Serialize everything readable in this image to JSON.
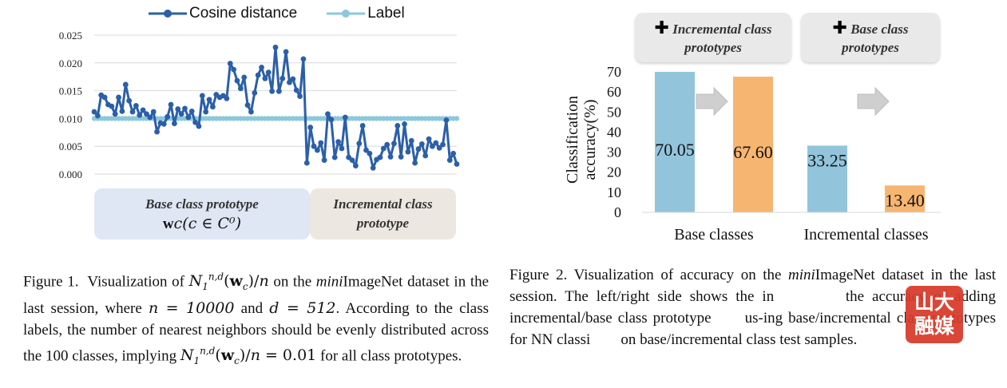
{
  "chart_data": [
    {
      "type": "line",
      "legend": [
        "Cosine distance",
        "Label"
      ],
      "legend_position": "top",
      "ylim": [
        0,
        0.025
      ],
      "yticks": [
        "0.025",
        "0.020",
        "0.015",
        "0.010",
        "0.005",
        "0.000"
      ],
      "grid": true,
      "series": [
        {
          "name": "Cosine distance",
          "color": "#2b5fa8",
          "values": [
            0.0112,
            0.0105,
            0.0142,
            0.0138,
            0.0125,
            0.0122,
            0.0108,
            0.0138,
            0.0113,
            0.0161,
            0.0132,
            0.0112,
            0.0123,
            0.0106,
            0.0115,
            0.0108,
            0.0102,
            0.0112,
            0.0076,
            0.0092,
            0.009,
            0.0103,
            0.0125,
            0.0091,
            0.0117,
            0.0108,
            0.0118,
            0.0102,
            0.0113,
            0.0093,
            0.0086,
            0.0141,
            0.0112,
            0.0134,
            0.0121,
            0.0143,
            0.0138,
            0.0141,
            0.0136,
            0.0199,
            0.0188,
            0.0168,
            0.0154,
            0.0174,
            0.0124,
            0.0112,
            0.0146,
            0.0178,
            0.0192,
            0.0172,
            0.0183,
            0.0149,
            0.0228,
            0.0149,
            0.0172,
            0.022,
            0.0165,
            0.0171,
            0.0151,
            0.014,
            0.0207,
            0.002,
            0.0084,
            0.005,
            0.0043,
            0.0056,
            0.0025,
            0.0108,
            0.0098,
            0.003,
            0.0058,
            0.0046,
            0.0102,
            0.003,
            0.0025,
            0.0015,
            0.0055,
            0.0087,
            0.0043,
            0.0037,
            0.0011,
            0.0026,
            0.003,
            0.0046,
            0.0053,
            0.0031,
            0.0055,
            0.0087,
            0.0031,
            0.009,
            0.004,
            0.006,
            0.002,
            0.0045,
            0.0054,
            0.0033,
            0.0063,
            0.005,
            0.0056,
            0.0047,
            0.0053,
            0.0097,
            0.0025,
            0.0037,
            0.0018
          ]
        },
        {
          "name": "Label",
          "color": "#8cc8dc",
          "values": [
            0.01,
            0.01
          ]
        }
      ],
      "regions": [
        {
          "line1": "Base class prototype",
          "line2": "w",
          "line2_rest": "c(c ∈ C⁰)",
          "color": "#dfe6f4"
        },
        {
          "line1": "Incremental class",
          "line2": "prototype",
          "color": "#ece8e1"
        }
      ]
    },
    {
      "type": "bar",
      "ylabel_line1": "Classification",
      "ylabel_line2": "accuracy(%)",
      "ylim": [
        0,
        70
      ],
      "yticks": [
        "70",
        "60",
        "50",
        "40",
        "30",
        "20",
        "10",
        "0"
      ],
      "categories": [
        "Base classes",
        "Incremental classes"
      ],
      "bars": [
        {
          "value": 70.05,
          "label": "70.05",
          "color": "#92c5dc"
        },
        {
          "value": 67.6,
          "label": "67.60",
          "color": "#f6b570"
        },
        {
          "value": 33.25,
          "label": "33.25",
          "color": "#92c5dc"
        },
        {
          "value": 13.4,
          "label": "13.40",
          "color": "#f6b570"
        }
      ],
      "annotations": [
        {
          "plus": "✚",
          "line1": "Incremental class",
          "line2": "prototypes"
        },
        {
          "plus": "✚",
          "line1": "Base class",
          "line2": "prototypes"
        }
      ]
    }
  ],
  "captions": {
    "fig1": {
      "label": "Figure 1.",
      "t1": "Visualization of",
      "t2": "on the",
      "t3": "mini",
      "t4": "ImageNet dataset in the last session, where",
      "n_eq": "n = 10000",
      "t5": "and",
      "d_eq": "d = 512",
      "t6": ". According to the class labels, the number of nearest neighbors should be evenly distributed across the 100 classes, implying",
      "t7": "for all class prototypes."
    },
    "fig2": {
      "label": "Figure 2.",
      "t1": "Visualization of accuracy on the",
      "t2": "mini",
      "t3": "ImageNet dataset in the last session.  The left/right side shows the in",
      "t4": "the accuracy of adding incremental/base class prototype",
      "t5": "us-ing base/incremental class prototypes for NN classi",
      "t6": "on base/incremental class test samples."
    }
  },
  "watermark": {
    "line1": "山大",
    "line2": "融媒"
  }
}
